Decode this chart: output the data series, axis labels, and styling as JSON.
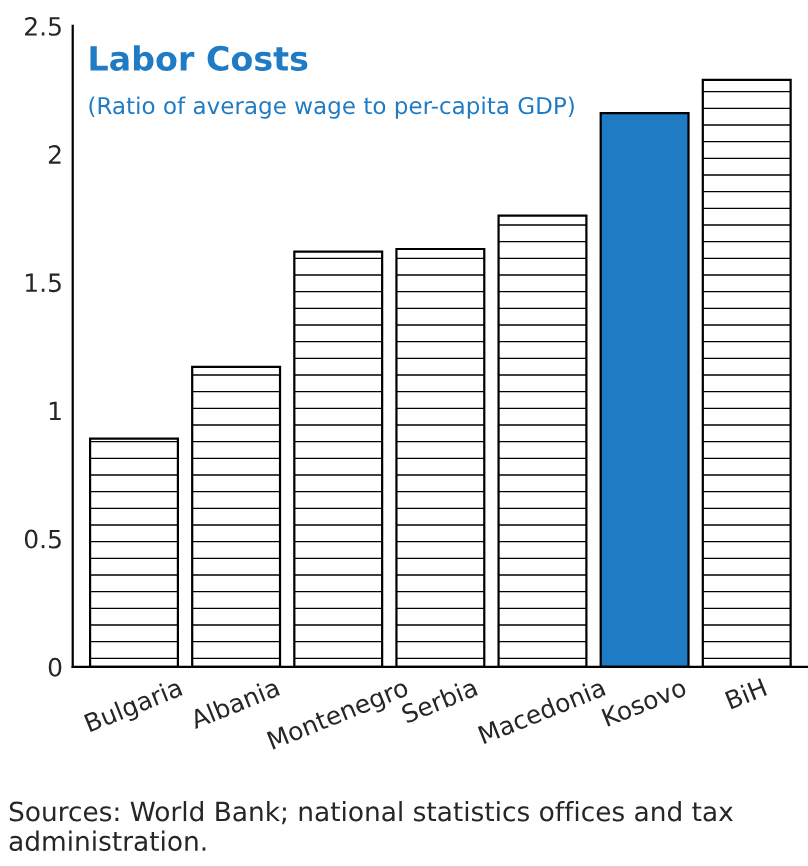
{
  "chart_data": {
    "type": "bar",
    "title": "Labor Costs",
    "subtitle": "(Ratio of average wage to per-capita GDP)",
    "categories": [
      "Bulgaria",
      "Albania",
      "Montenegro",
      "Serbia",
      "Macedonia",
      "Kosovo",
      "BiH"
    ],
    "values": [
      0.89,
      1.17,
      1.62,
      1.63,
      1.76,
      2.16,
      2.29
    ],
    "colors": [
      "#000000",
      "#000000",
      "#000000",
      "#000000",
      "#000000",
      "#1f7bc4",
      "#000000"
    ],
    "ylim": [
      0,
      2.5
    ],
    "yticks": [
      0,
      0.5,
      1,
      1.5,
      2,
      2.5
    ],
    "grid": false,
    "legend": false,
    "annotations": [
      "Sources: World Bank; national statistics offices and tax administration."
    ]
  }
}
